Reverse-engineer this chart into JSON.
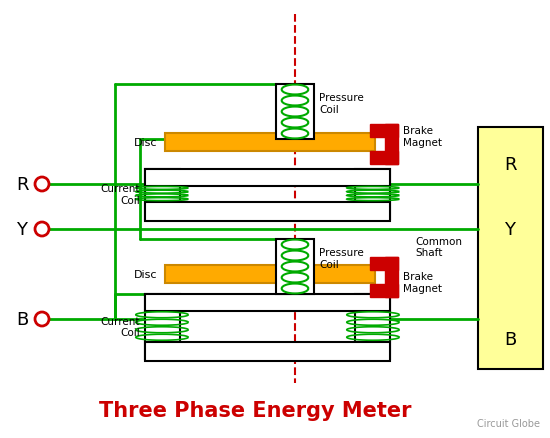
{
  "title": "Three Phase Energy Meter",
  "title_color": "#cc0000",
  "title_fontsize": 15,
  "bg_color": "#ffffff",
  "watermark": "Circuit Globe",
  "watermark_color": "#999999",
  "wire_color": "#00aa00",
  "line_width": 2.0,
  "terminal_color": "#cc0000",
  "disc_color": "#ffaa00",
  "disc_edge_color": "#cc8800",
  "brake_color": "#cc0000",
  "coil_color": "#00aa00",
  "shaft_dashed_color": "#cc0000",
  "output_box_color": "#ffff99",
  "label_color": "#000000",
  "phases": [
    "R",
    "Y",
    "B"
  ]
}
